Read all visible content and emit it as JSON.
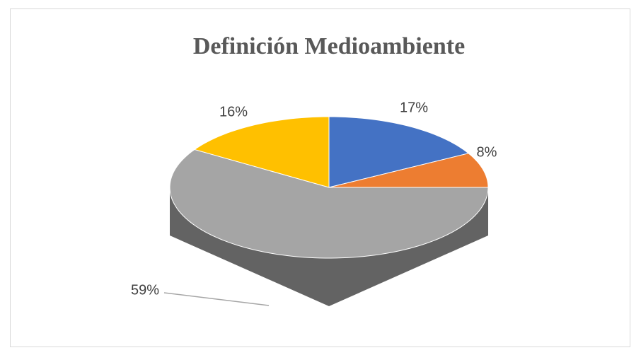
{
  "chart_data": {
    "type": "pie3d",
    "title": "Definición Medioambiente",
    "values": [
      17,
      8,
      59,
      16
    ],
    "value_labels": [
      "17%",
      "8%",
      "59%",
      "16%"
    ],
    "colors": [
      "#4472c4",
      "#ed7d31",
      "#a5a5a5",
      "#ffc000"
    ]
  }
}
